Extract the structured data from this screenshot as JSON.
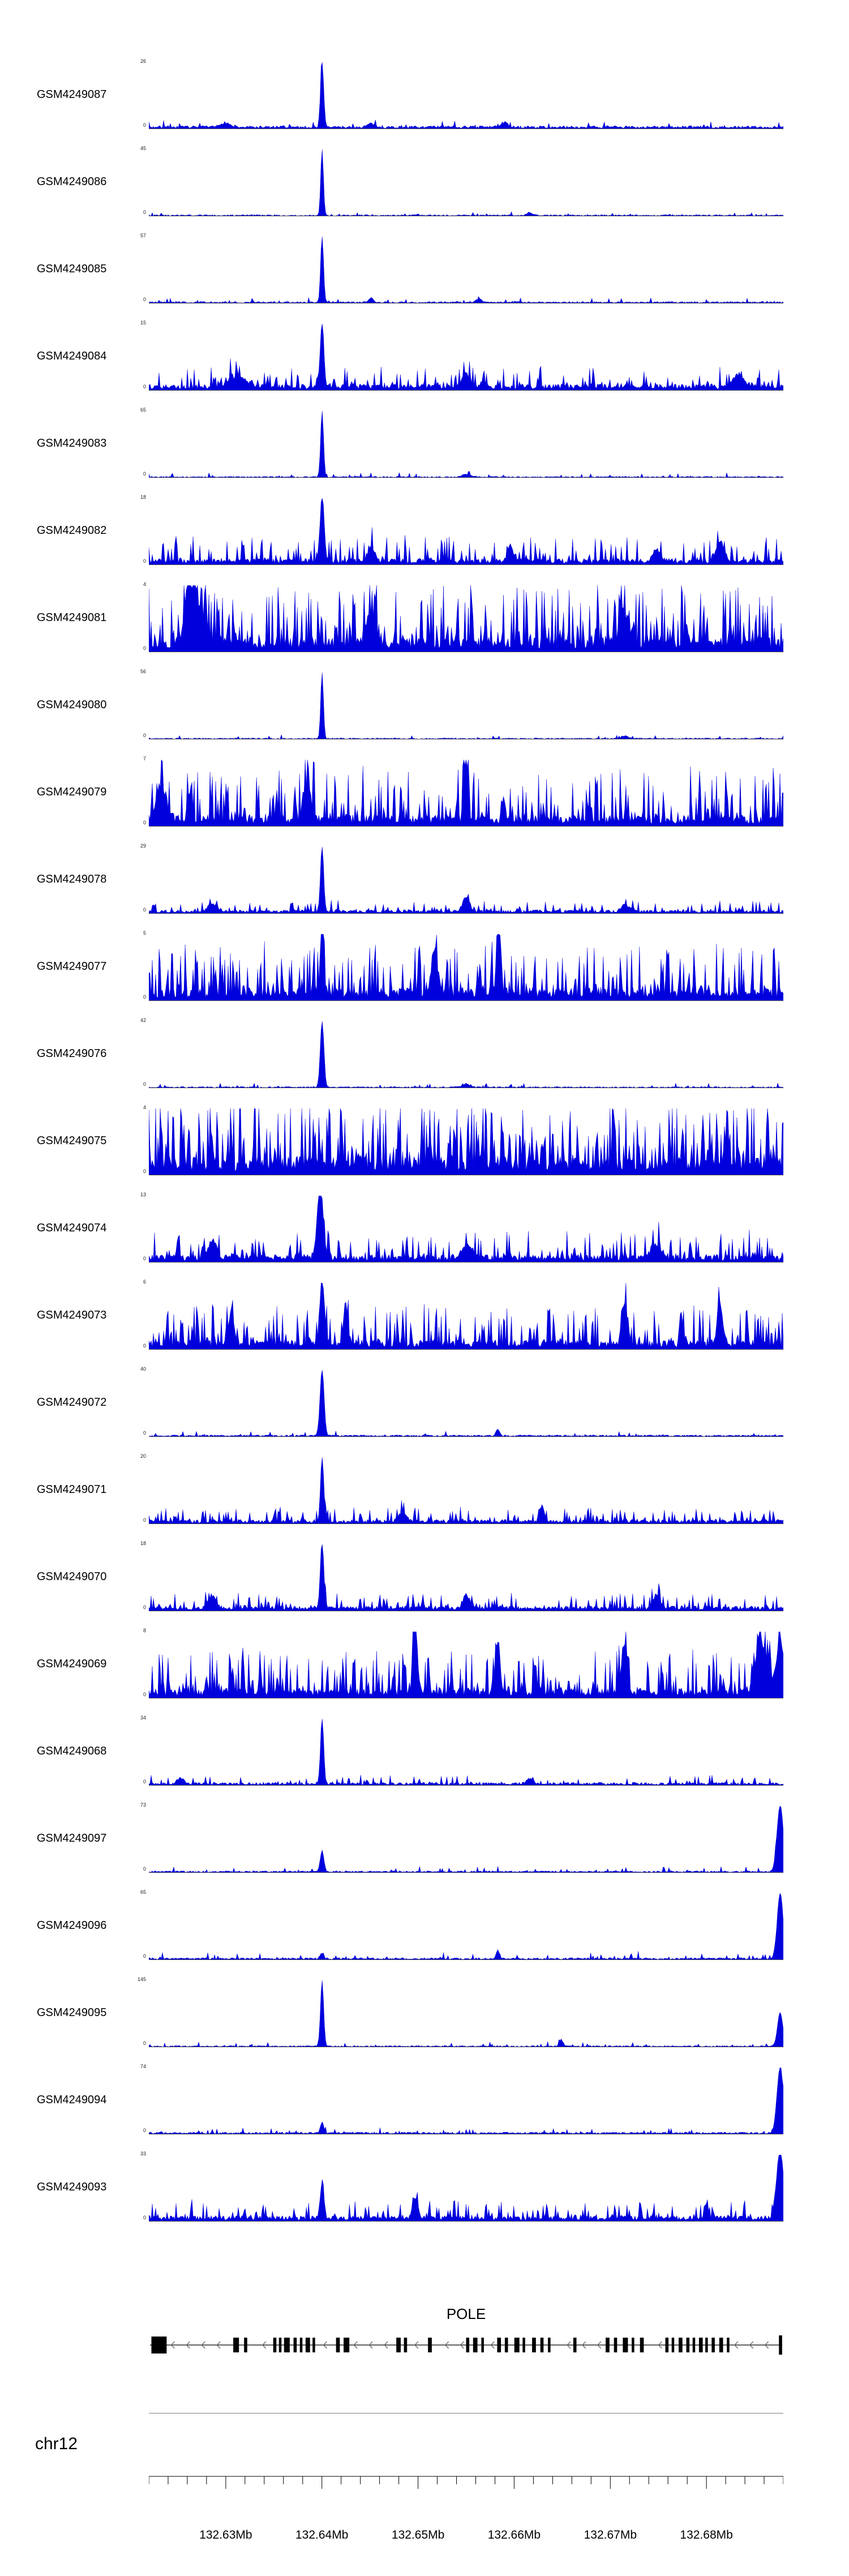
{
  "chart_data": {
    "type": "area",
    "description": "Genome browser coverage figure: 25 GEO sample signal tracks (blue filled area plots) over chr12 POLE locus, gene model track, and genomic coordinate ruler.",
    "signal_color": "#0000dd",
    "y_baseline_label": "0",
    "x_axis": {
      "chromosome": "chr12",
      "start_mb": 132.622,
      "end_mb": 132.688,
      "minor_tick_step_mb": 0.002,
      "ticks": [
        {
          "mb": 132.63,
          "label": "132.63Mb"
        },
        {
          "mb": 132.64,
          "label": "132.64Mb"
        },
        {
          "mb": 132.65,
          "label": "132.65Mb"
        },
        {
          "mb": 132.66,
          "label": "132.66Mb"
        },
        {
          "mb": 132.67,
          "label": "132.67Mb"
        },
        {
          "mb": 132.68,
          "label": "132.68Mb"
        }
      ]
    },
    "gene_track": {
      "gene": "POLE",
      "strand": "-",
      "exons": [
        [
          0.004,
          0.024,
          30
        ],
        [
          0.133,
          0.009
        ],
        [
          0.15,
          0.005
        ],
        [
          0.196,
          0.005
        ],
        [
          0.205,
          0.004
        ],
        [
          0.213,
          0.009
        ],
        [
          0.228,
          0.005
        ],
        [
          0.238,
          0.004
        ],
        [
          0.247,
          0.007
        ],
        [
          0.258,
          0.004
        ],
        [
          0.295,
          0.006
        ],
        [
          0.307,
          0.009
        ],
        [
          0.39,
          0.007
        ],
        [
          0.402,
          0.005
        ],
        [
          0.44,
          0.006
        ],
        [
          0.5,
          0.005
        ],
        [
          0.511,
          0.007
        ],
        [
          0.524,
          0.004
        ],
        [
          0.549,
          0.006
        ],
        [
          0.561,
          0.005
        ],
        [
          0.576,
          0.008
        ],
        [
          0.589,
          0.004
        ],
        [
          0.604,
          0.006
        ],
        [
          0.617,
          0.005
        ],
        [
          0.629,
          0.004
        ],
        [
          0.669,
          0.005
        ],
        [
          0.72,
          0.006
        ],
        [
          0.733,
          0.005
        ],
        [
          0.747,
          0.008
        ],
        [
          0.761,
          0.004
        ],
        [
          0.774,
          0.006
        ],
        [
          0.814,
          0.005
        ],
        [
          0.824,
          0.004
        ],
        [
          0.835,
          0.006
        ],
        [
          0.847,
          0.005
        ],
        [
          0.857,
          0.004
        ],
        [
          0.867,
          0.006
        ],
        [
          0.877,
          0.004
        ],
        [
          0.887,
          0.005
        ],
        [
          0.899,
          0.006
        ],
        [
          0.911,
          0.004
        ],
        [
          0.993,
          0.005,
          34
        ]
      ]
    },
    "tracks": [
      {
        "name": "GSM4249087",
        "ymax": "26",
        "base": 0.05,
        "spikes": 0.1,
        "smax": 0.1,
        "peaks": [
          [
            0.273,
            1,
            0.0035
          ],
          [
            0.12,
            0.07,
            0.01
          ],
          [
            0.35,
            0.05,
            0.008
          ],
          [
            0.56,
            0.07,
            0.008
          ]
        ]
      },
      {
        "name": "GSM4249086",
        "ymax": "45",
        "base": 0.025,
        "spikes": 0.05,
        "smax": 0.05,
        "peaks": [
          [
            0.273,
            1,
            0.003
          ],
          [
            0.6,
            0.04,
            0.006
          ]
        ]
      },
      {
        "name": "GSM4249085",
        "ymax": "57",
        "base": 0.03,
        "spikes": 0.08,
        "smax": 0.07,
        "peaks": [
          [
            0.273,
            1,
            0.0032
          ],
          [
            0.35,
            0.06,
            0.006
          ],
          [
            0.52,
            0.05,
            0.006
          ]
        ]
      },
      {
        "name": "GSM4249084",
        "ymax": "15",
        "base": 0.1,
        "spikes": 0.3,
        "smax": 0.28,
        "peaks": [
          [
            0.273,
            1,
            0.004
          ],
          [
            0.14,
            0.15,
            0.02
          ],
          [
            0.5,
            0.18,
            0.01
          ],
          [
            0.93,
            0.2,
            0.012
          ]
        ]
      },
      {
        "name": "GSM4249083",
        "ymax": "65",
        "base": 0.022,
        "spikes": 0.05,
        "smax": 0.06,
        "peaks": [
          [
            0.273,
            1,
            0.0032
          ],
          [
            0.5,
            0.04,
            0.01
          ]
        ]
      },
      {
        "name": "GSM4249082",
        "ymax": "18",
        "base": 0.1,
        "spikes": 0.32,
        "smax": 0.35,
        "peaks": [
          [
            0.273,
            1,
            0.0045
          ],
          [
            0.35,
            0.2,
            0.008
          ],
          [
            0.57,
            0.25,
            0.006
          ],
          [
            0.8,
            0.2,
            0.008
          ],
          [
            0.9,
            0.28,
            0.01
          ]
        ]
      },
      {
        "name": "GSM4249081",
        "ymax": "4",
        "base": 0.22,
        "spikes": 0.5,
        "smax": 0.85,
        "peaks": [
          [
            0.07,
            0.85,
            0.015
          ],
          [
            0.35,
            0.5,
            0.01
          ],
          [
            0.75,
            0.45,
            0.01
          ]
        ]
      },
      {
        "name": "GSM4249080",
        "ymax": "56",
        "base": 0.022,
        "spikes": 0.05,
        "smax": 0.05,
        "peaks": [
          [
            0.273,
            1,
            0.003
          ],
          [
            0.75,
            0.04,
            0.008
          ]
        ]
      },
      {
        "name": "GSM4249079",
        "ymax": "7",
        "base": 0.18,
        "spikes": 0.45,
        "smax": 0.75,
        "peaks": [
          [
            0.5,
            1,
            0.004
          ],
          [
            0.02,
            0.45,
            0.012
          ],
          [
            0.25,
            0.55,
            0.008
          ]
        ]
      },
      {
        "name": "GSM4249078",
        "ymax": "29",
        "base": 0.06,
        "spikes": 0.22,
        "smax": 0.16,
        "peaks": [
          [
            0.273,
            1,
            0.0035
          ],
          [
            0.1,
            0.12,
            0.01
          ],
          [
            0.5,
            0.2,
            0.008
          ],
          [
            0.75,
            0.12,
            0.008
          ]
        ]
      },
      {
        "name": "GSM4249077",
        "ymax": "5",
        "base": 0.2,
        "spikes": 0.48,
        "smax": 0.7,
        "peaks": [
          [
            0.273,
            1,
            0.004
          ],
          [
            0.45,
            0.7,
            0.006
          ],
          [
            0.55,
            0.95,
            0.004
          ]
        ]
      },
      {
        "name": "GSM4249076",
        "ymax": "42",
        "base": 0.025,
        "spikes": 0.06,
        "smax": 0.06,
        "peaks": [
          [
            0.273,
            1,
            0.004
          ],
          [
            0.5,
            0.05,
            0.008
          ]
        ]
      },
      {
        "name": "GSM4249075",
        "ymax": "4",
        "base": 0.28,
        "spikes": 0.55,
        "smax": 0.95,
        "peaks": []
      },
      {
        "name": "GSM4249074",
        "ymax": "13",
        "base": 0.12,
        "spikes": 0.35,
        "smax": 0.38,
        "peaks": [
          [
            0.27,
            1,
            0.007
          ],
          [
            0.1,
            0.25,
            0.01
          ],
          [
            0.5,
            0.2,
            0.01
          ],
          [
            0.8,
            0.2,
            0.012
          ]
        ]
      },
      {
        "name": "GSM4249073",
        "ymax": "6",
        "base": 0.15,
        "spikes": 0.4,
        "smax": 0.55,
        "peaks": [
          [
            0.13,
            0.5,
            0.006
          ],
          [
            0.273,
            1,
            0.005
          ],
          [
            0.31,
            0.6,
            0.005
          ],
          [
            0.75,
            0.6,
            0.006
          ],
          [
            0.9,
            0.65,
            0.006
          ]
        ]
      },
      {
        "name": "GSM4249072",
        "ymax": "40",
        "base": 0.03,
        "spikes": 0.07,
        "smax": 0.07,
        "peaks": [
          [
            0.273,
            1,
            0.0045
          ],
          [
            0.55,
            0.1,
            0.004
          ]
        ]
      },
      {
        "name": "GSM4249071",
        "ymax": "20",
        "base": 0.07,
        "spikes": 0.25,
        "smax": 0.2,
        "peaks": [
          [
            0.273,
            1,
            0.0035
          ],
          [
            0.4,
            0.15,
            0.008
          ],
          [
            0.62,
            0.25,
            0.005
          ]
        ]
      },
      {
        "name": "GSM4249070",
        "ymax": "18",
        "base": 0.08,
        "spikes": 0.28,
        "smax": 0.22,
        "peaks": [
          [
            0.273,
            1,
            0.004
          ],
          [
            0.1,
            0.2,
            0.008
          ],
          [
            0.5,
            0.22,
            0.006
          ],
          [
            0.8,
            0.18,
            0.008
          ]
        ]
      },
      {
        "name": "GSM4249069",
        "ymax": "8",
        "base": 0.16,
        "spikes": 0.45,
        "smax": 0.6,
        "peaks": [
          [
            0.42,
            1,
            0.005
          ],
          [
            0.55,
            0.8,
            0.005
          ],
          [
            0.75,
            0.75,
            0.006
          ],
          [
            0.965,
            0.75,
            0.012
          ],
          [
            0.995,
            0.8,
            0.008
          ]
        ]
      },
      {
        "name": "GSM4249068",
        "ymax": "34",
        "base": 0.05,
        "spikes": 0.14,
        "smax": 0.12,
        "peaks": [
          [
            0.273,
            1,
            0.0035
          ],
          [
            0.05,
            0.08,
            0.008
          ],
          [
            0.6,
            0.07,
            0.008
          ]
        ]
      },
      {
        "name": "GSM4249097",
        "ymax": "73",
        "base": 0.03,
        "spikes": 0.08,
        "smax": 0.08,
        "peaks": [
          [
            0.273,
            0.32,
            0.004
          ],
          [
            0.995,
            1,
            0.007
          ]
        ]
      },
      {
        "name": "GSM4249096",
        "ymax": "65",
        "base": 0.035,
        "spikes": 0.1,
        "smax": 0.1,
        "peaks": [
          [
            0.273,
            0.08,
            0.004
          ],
          [
            0.55,
            0.12,
            0.004
          ],
          [
            0.995,
            1,
            0.0065
          ]
        ]
      },
      {
        "name": "GSM4249095",
        "ymax": "145",
        "base": 0.025,
        "spikes": 0.07,
        "smax": 0.07,
        "peaks": [
          [
            0.273,
            1,
            0.0035
          ],
          [
            0.65,
            0.1,
            0.004
          ],
          [
            0.995,
            0.5,
            0.006
          ]
        ]
      },
      {
        "name": "GSM4249094",
        "ymax": "74",
        "base": 0.035,
        "spikes": 0.1,
        "smax": 0.08,
        "peaks": [
          [
            0.273,
            0.16,
            0.004
          ],
          [
            0.995,
            1,
            0.007
          ]
        ]
      },
      {
        "name": "GSM4249093",
        "ymax": "33",
        "base": 0.09,
        "spikes": 0.28,
        "smax": 0.25,
        "peaks": [
          [
            0.273,
            0.55,
            0.004
          ],
          [
            0.42,
            0.3,
            0.006
          ],
          [
            0.995,
            1,
            0.008
          ]
        ]
      }
    ]
  }
}
